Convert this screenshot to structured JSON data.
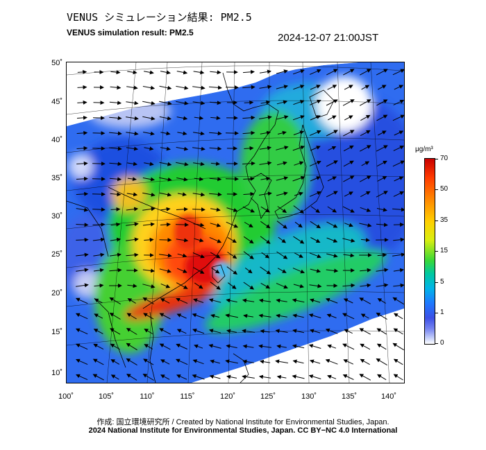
{
  "header": {
    "title_jp": "VENUS シミュレーション結果: PM2.5",
    "title_en": "VENUS simulation result: PM2.5",
    "timestamp": "2024-12-07 21:00JST"
  },
  "axes": {
    "lat_labels": [
      "50˚",
      "45˚",
      "40˚",
      "35˚",
      "30˚",
      "25˚",
      "20˚",
      "15˚",
      "10˚"
    ],
    "lon_labels": [
      "100˚",
      "105˚",
      "110˚",
      "115˚",
      "120˚",
      "125˚",
      "130˚",
      "135˚",
      "140˚"
    ]
  },
  "legend": {
    "unit": "μg/m³",
    "ticks": [
      "70",
      "50",
      "35",
      "15",
      "5",
      "1",
      "0"
    ]
  },
  "footer": {
    "credit_line1": "作成: 国立環境研究所 / Created by National Institute for Environmental Studies, Japan.",
    "credit_line2": "2024 National Institute for Environmental Studies, Japan. CC BY−NC 4.0 International"
  },
  "colors": {
    "clean_blue": "#2f6cf0",
    "moderate_green": "#22cc33",
    "high_orange": "#ff8800",
    "very_high_red": "#e01010"
  }
}
